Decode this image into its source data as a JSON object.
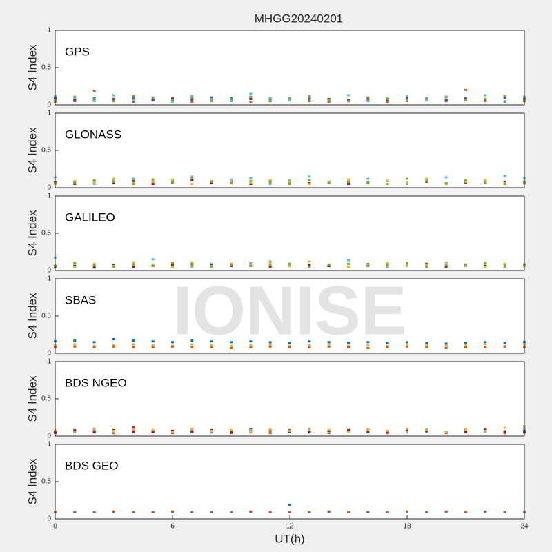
{
  "title": "MHGG20240201",
  "watermark": "IONISE",
  "chart_data": [
    {
      "type": "scatter",
      "title": "GPS",
      "ylabel": "S4 Index",
      "xlim": [
        0,
        24
      ],
      "ylim": [
        0,
        1
      ],
      "yticks": [
        0,
        0.5,
        1
      ],
      "x": [
        0,
        1,
        2,
        3,
        4,
        5,
        6,
        7,
        8,
        9,
        10,
        11,
        12,
        13,
        14,
        15,
        16,
        17,
        18,
        19,
        20,
        21,
        22,
        23,
        24
      ],
      "series": [
        {
          "color": "#0072BD",
          "values": [
            0.08,
            0.07,
            0.09,
            0.06,
            0.08,
            0.07,
            0.06,
            0.08,
            0.07,
            0.09,
            0.08,
            0.07,
            0.06,
            0.08,
            0.07,
            0.06,
            0.08,
            0.07,
            0.09,
            0.07,
            0.06,
            0.08,
            0.07,
            0.09,
            0.08
          ]
        },
        {
          "color": "#D95319",
          "values": [
            0.04,
            0.05,
            0.19,
            0.05,
            0.04,
            0.06,
            0.05,
            0.04,
            0.05,
            0.06,
            0.04,
            0.05,
            0.06,
            0.05,
            0.04,
            0.05,
            0.06,
            0.04,
            0.05,
            0.06,
            0.05,
            0.2,
            0.05,
            0.04,
            0.05
          ]
        },
        {
          "color": "#7E2F8E",
          "values": [
            0.1,
            0.06,
            0.07,
            0.08,
            0.11,
            0.06,
            0.09,
            0.07,
            0.1,
            0.06,
            0.08,
            0.09,
            0.07,
            0.1,
            0.08,
            0.06,
            0.09,
            0.07,
            0.1,
            0.08,
            0.06,
            0.09,
            0.07,
            0.1,
            0.08
          ]
        },
        {
          "color": "#4DBEEE",
          "values": [
            0.12,
            0.09,
            0.05,
            0.13,
            0.07,
            0.1,
            0.04,
            0.12,
            0.08,
            0.05,
            0.15,
            0.09,
            0.06,
            0.11,
            0.07,
            0.13,
            0.05,
            0.09,
            0.12,
            0.06,
            0.1,
            0.07,
            0.13,
            0.05,
            0.11
          ]
        },
        {
          "color": "#77AC30",
          "values": [
            0.06,
            0.11,
            0.08,
            0.05,
            0.12,
            0.09,
            0.07,
            0.1,
            0.05,
            0.08,
            0.11,
            0.06,
            0.09,
            0.12,
            0.07,
            0.05,
            0.1,
            0.08,
            0.06,
            0.09,
            0.11,
            0.06,
            0.08,
            0.12,
            0.07
          ]
        }
      ]
    },
    {
      "type": "scatter",
      "title": "GLONASS",
      "ylabel": "S4 Index",
      "xlim": [
        0,
        24
      ],
      "ylim": [
        0,
        1
      ],
      "yticks": [
        0,
        0.5,
        1
      ],
      "x": [
        0,
        1,
        2,
        3,
        4,
        5,
        6,
        7,
        8,
        9,
        10,
        11,
        12,
        13,
        14,
        15,
        16,
        17,
        18,
        19,
        20,
        21,
        22,
        23,
        24
      ],
      "series": [
        {
          "color": "#4DBEEE",
          "values": [
            0.14,
            0.08,
            0.05,
            0.1,
            0.12,
            0.06,
            0.09,
            0.15,
            0.07,
            0.11,
            0.13,
            0.05,
            0.1,
            0.15,
            0.08,
            0.06,
            0.12,
            0.09,
            0.05,
            0.11,
            0.14,
            0.07,
            0.1,
            0.16,
            0.13
          ]
        },
        {
          "color": "#A2142F",
          "values": [
            0.07,
            0.05,
            0.08,
            0.06,
            0.09,
            0.05,
            0.07,
            0.1,
            0.06,
            0.08,
            0.05,
            0.09,
            0.07,
            0.06,
            0.08,
            0.05,
            0.07,
            0.09,
            0.06,
            0.08,
            0.05,
            0.07,
            0.06,
            0.08,
            0.06
          ]
        },
        {
          "color": "#EDB120",
          "values": [
            0.05,
            0.09,
            0.07,
            0.12,
            0.06,
            0.08,
            0.11,
            0.05,
            0.09,
            0.07,
            0.06,
            0.1,
            0.08,
            0.05,
            0.07,
            0.11,
            0.06,
            0.09,
            0.07,
            0.12,
            0.05,
            0.08,
            0.1,
            0.06,
            0.07
          ]
        },
        {
          "color": "#77AC30",
          "values": [
            0.06,
            0.07,
            0.1,
            0.08,
            0.05,
            0.11,
            0.07,
            0.13,
            0.08,
            0.06,
            0.09,
            0.07,
            0.05,
            0.1,
            0.06,
            0.08,
            0.07,
            0.05,
            0.12,
            0.09,
            0.06,
            0.1,
            0.07,
            0.05,
            0.08
          ]
        }
      ]
    },
    {
      "type": "scatter",
      "title": "GALILEO",
      "ylabel": "S4 Index",
      "xlim": [
        0,
        24
      ],
      "ylim": [
        0,
        1
      ],
      "yticks": [
        0,
        0.5,
        1
      ],
      "x": [
        0,
        1,
        2,
        3,
        4,
        5,
        6,
        7,
        8,
        9,
        10,
        11,
        12,
        13,
        14,
        15,
        16,
        17,
        18,
        19,
        20,
        21,
        22,
        23,
        24
      ],
      "series": [
        {
          "color": "#4DBEEE",
          "values": [
            0.17,
            0.09,
            0.06,
            0.08,
            0.11,
            0.15,
            0.07,
            0.05,
            0.09,
            0.06,
            0.1,
            0.12,
            0.07,
            0.08,
            0.06,
            0.14,
            0.09,
            0.05,
            0.08,
            0.07,
            0.1,
            0.06,
            0.09,
            0.05,
            0.07
          ]
        },
        {
          "color": "#A2142F",
          "values": [
            0.05,
            0.06,
            0.04,
            0.07,
            0.05,
            0.06,
            0.08,
            0.09,
            0.07,
            0.06,
            0.08,
            0.05,
            0.09,
            0.07,
            0.06,
            0.05,
            0.08,
            0.07,
            0.06,
            0.09,
            0.05,
            0.07,
            0.06,
            0.08,
            0.07
          ]
        },
        {
          "color": "#EDB120",
          "values": [
            0.07,
            0.05,
            0.09,
            0.06,
            0.1,
            0.08,
            0.05,
            0.11,
            0.06,
            0.09,
            0.07,
            0.1,
            0.06,
            0.12,
            0.08,
            0.05,
            0.07,
            0.1,
            0.06,
            0.08,
            0.11,
            0.07,
            0.05,
            0.09,
            0.06
          ]
        },
        {
          "color": "#77AC30",
          "values": [
            0.06,
            0.1,
            0.07,
            0.05,
            0.08,
            0.06,
            0.1,
            0.07,
            0.05,
            0.08,
            0.06,
            0.07,
            0.09,
            0.05,
            0.07,
            0.09,
            0.06,
            0.08,
            0.1,
            0.05,
            0.07,
            0.08,
            0.1,
            0.06,
            0.08
          ]
        }
      ]
    },
    {
      "type": "scatter",
      "title": "SBAS",
      "ylabel": "S4 Index",
      "xlim": [
        0,
        24
      ],
      "ylim": [
        0,
        1
      ],
      "yticks": [
        0,
        0.5,
        1
      ],
      "x": [
        0,
        1,
        2,
        3,
        4,
        5,
        6,
        7,
        8,
        9,
        10,
        11,
        12,
        13,
        14,
        15,
        16,
        17,
        18,
        19,
        20,
        21,
        22,
        23,
        24
      ],
      "series": [
        {
          "color": "#0072BD",
          "values": [
            0.16,
            0.17,
            0.15,
            0.19,
            0.17,
            0.16,
            0.15,
            0.17,
            0.16,
            0.15,
            0.16,
            0.15,
            0.14,
            0.16,
            0.15,
            0.14,
            0.15,
            0.14,
            0.15,
            0.14,
            0.13,
            0.14,
            0.15,
            0.14,
            0.15
          ]
        },
        {
          "color": "#EDB120",
          "values": [
            0.11,
            0.12,
            0.1,
            0.11,
            0.12,
            0.11,
            0.1,
            0.12,
            0.11,
            0.1,
            0.11,
            0.12,
            0.1,
            0.11,
            0.12,
            0.1,
            0.11,
            0.1,
            0.12,
            0.11,
            0.1,
            0.11,
            0.12,
            0.1,
            0.11
          ]
        },
        {
          "color": "#D95319",
          "values": [
            0.08,
            0.09,
            0.08,
            0.09,
            0.08,
            0.08,
            0.09,
            0.08,
            0.08,
            0.07,
            0.08,
            0.09,
            0.08,
            0.08,
            0.09,
            0.08,
            0.07,
            0.08,
            0.09,
            0.08,
            0.07,
            0.08,
            0.08,
            0.09,
            0.08
          ]
        }
      ]
    },
    {
      "type": "scatter",
      "title": "BDS NGEO",
      "ylabel": "S4 Index",
      "xlim": [
        0,
        24
      ],
      "ylim": [
        0,
        1
      ],
      "yticks": [
        0,
        0.5,
        1
      ],
      "x": [
        0,
        1,
        2,
        3,
        4,
        5,
        6,
        7,
        8,
        9,
        10,
        11,
        12,
        13,
        14,
        15,
        16,
        17,
        18,
        19,
        20,
        21,
        22,
        23,
        24
      ],
      "series": [
        {
          "color": "#7E2F8E",
          "values": [
            0.06,
            0.08,
            0.07,
            0.05,
            0.12,
            0.07,
            0.06,
            0.08,
            0.05,
            0.07,
            0.09,
            0.06,
            0.08,
            0.05,
            0.07,
            0.06,
            0.09,
            0.07,
            0.05,
            0.08,
            0.06,
            0.07,
            0.09,
            0.05,
            0.07
          ]
        },
        {
          "color": "#D95319",
          "values": [
            0.04,
            0.05,
            0.06,
            0.04,
            0.05,
            0.06,
            0.04,
            0.05,
            0.06,
            0.04,
            0.05,
            0.04,
            0.06,
            0.05,
            0.04,
            0.06,
            0.05,
            0.04,
            0.05,
            0.06,
            0.04,
            0.05,
            0.06,
            0.04,
            0.05
          ]
        },
        {
          "color": "#4DBEEE",
          "values": [
            0.07,
            0.05,
            0.09,
            0.06,
            0.08,
            0.05,
            0.07,
            0.09,
            0.06,
            0.05,
            0.08,
            0.07,
            0.05,
            0.09,
            0.06,
            0.08,
            0.05,
            0.07,
            0.06,
            0.09,
            0.05,
            0.08,
            0.06,
            0.07,
            0.1
          ]
        },
        {
          "color": "#A2142F",
          "values": [
            0.05,
            0.07,
            0.05,
            0.08,
            0.06,
            0.05,
            0.07,
            0.06,
            0.08,
            0.05,
            0.06,
            0.08,
            0.06,
            0.05,
            0.07,
            0.08,
            0.06,
            0.05,
            0.08,
            0.07,
            0.05,
            0.06,
            0.08,
            0.06,
            0.05
          ]
        },
        {
          "color": "#EDB120",
          "values": [
            0.08,
            0.06,
            0.1,
            0.07,
            0.09,
            0.08,
            0.06,
            0.1,
            0.07,
            0.08,
            0.06,
            0.09,
            0.07,
            0.1,
            0.08,
            0.06,
            0.09,
            0.07,
            0.1,
            0.08,
            0.06,
            0.09,
            0.07,
            0.11,
            0.13
          ]
        }
      ]
    },
    {
      "type": "scatter",
      "title": "BDS GEO",
      "ylabel": "S4 Index",
      "xlabel": "UT(h)",
      "xlim": [
        0,
        24
      ],
      "ylim": [
        0,
        1
      ],
      "yticks": [
        0,
        0.5,
        1
      ],
      "xticks": [
        0,
        6,
        12,
        18,
        24
      ],
      "x": [
        0,
        1,
        2,
        3,
        4,
        5,
        6,
        7,
        8,
        9,
        10,
        11,
        12,
        13,
        14,
        15,
        16,
        17,
        18,
        19,
        20,
        21,
        22,
        23,
        24
      ],
      "series": [
        {
          "color": "#0072BD",
          "values": [
            0.09,
            0.09,
            0.09,
            0.09,
            0.09,
            0.09,
            0.09,
            0.09,
            0.09,
            0.09,
            0.09,
            0.09,
            0.19,
            0.09,
            0.09,
            0.09,
            0.09,
            0.09,
            0.09,
            0.09,
            0.09,
            0.09,
            0.09,
            0.09,
            0.09
          ]
        },
        {
          "color": "#D95319",
          "values": [
            0.09,
            0.09,
            0.09,
            0.1,
            0.09,
            0.09,
            0.1,
            0.09,
            0.09,
            0.09,
            0.1,
            0.09,
            0.09,
            0.09,
            0.1,
            0.09,
            0.09,
            0.09,
            0.1,
            0.09,
            0.1,
            0.09,
            0.1,
            0.09,
            0.09
          ]
        }
      ]
    }
  ]
}
